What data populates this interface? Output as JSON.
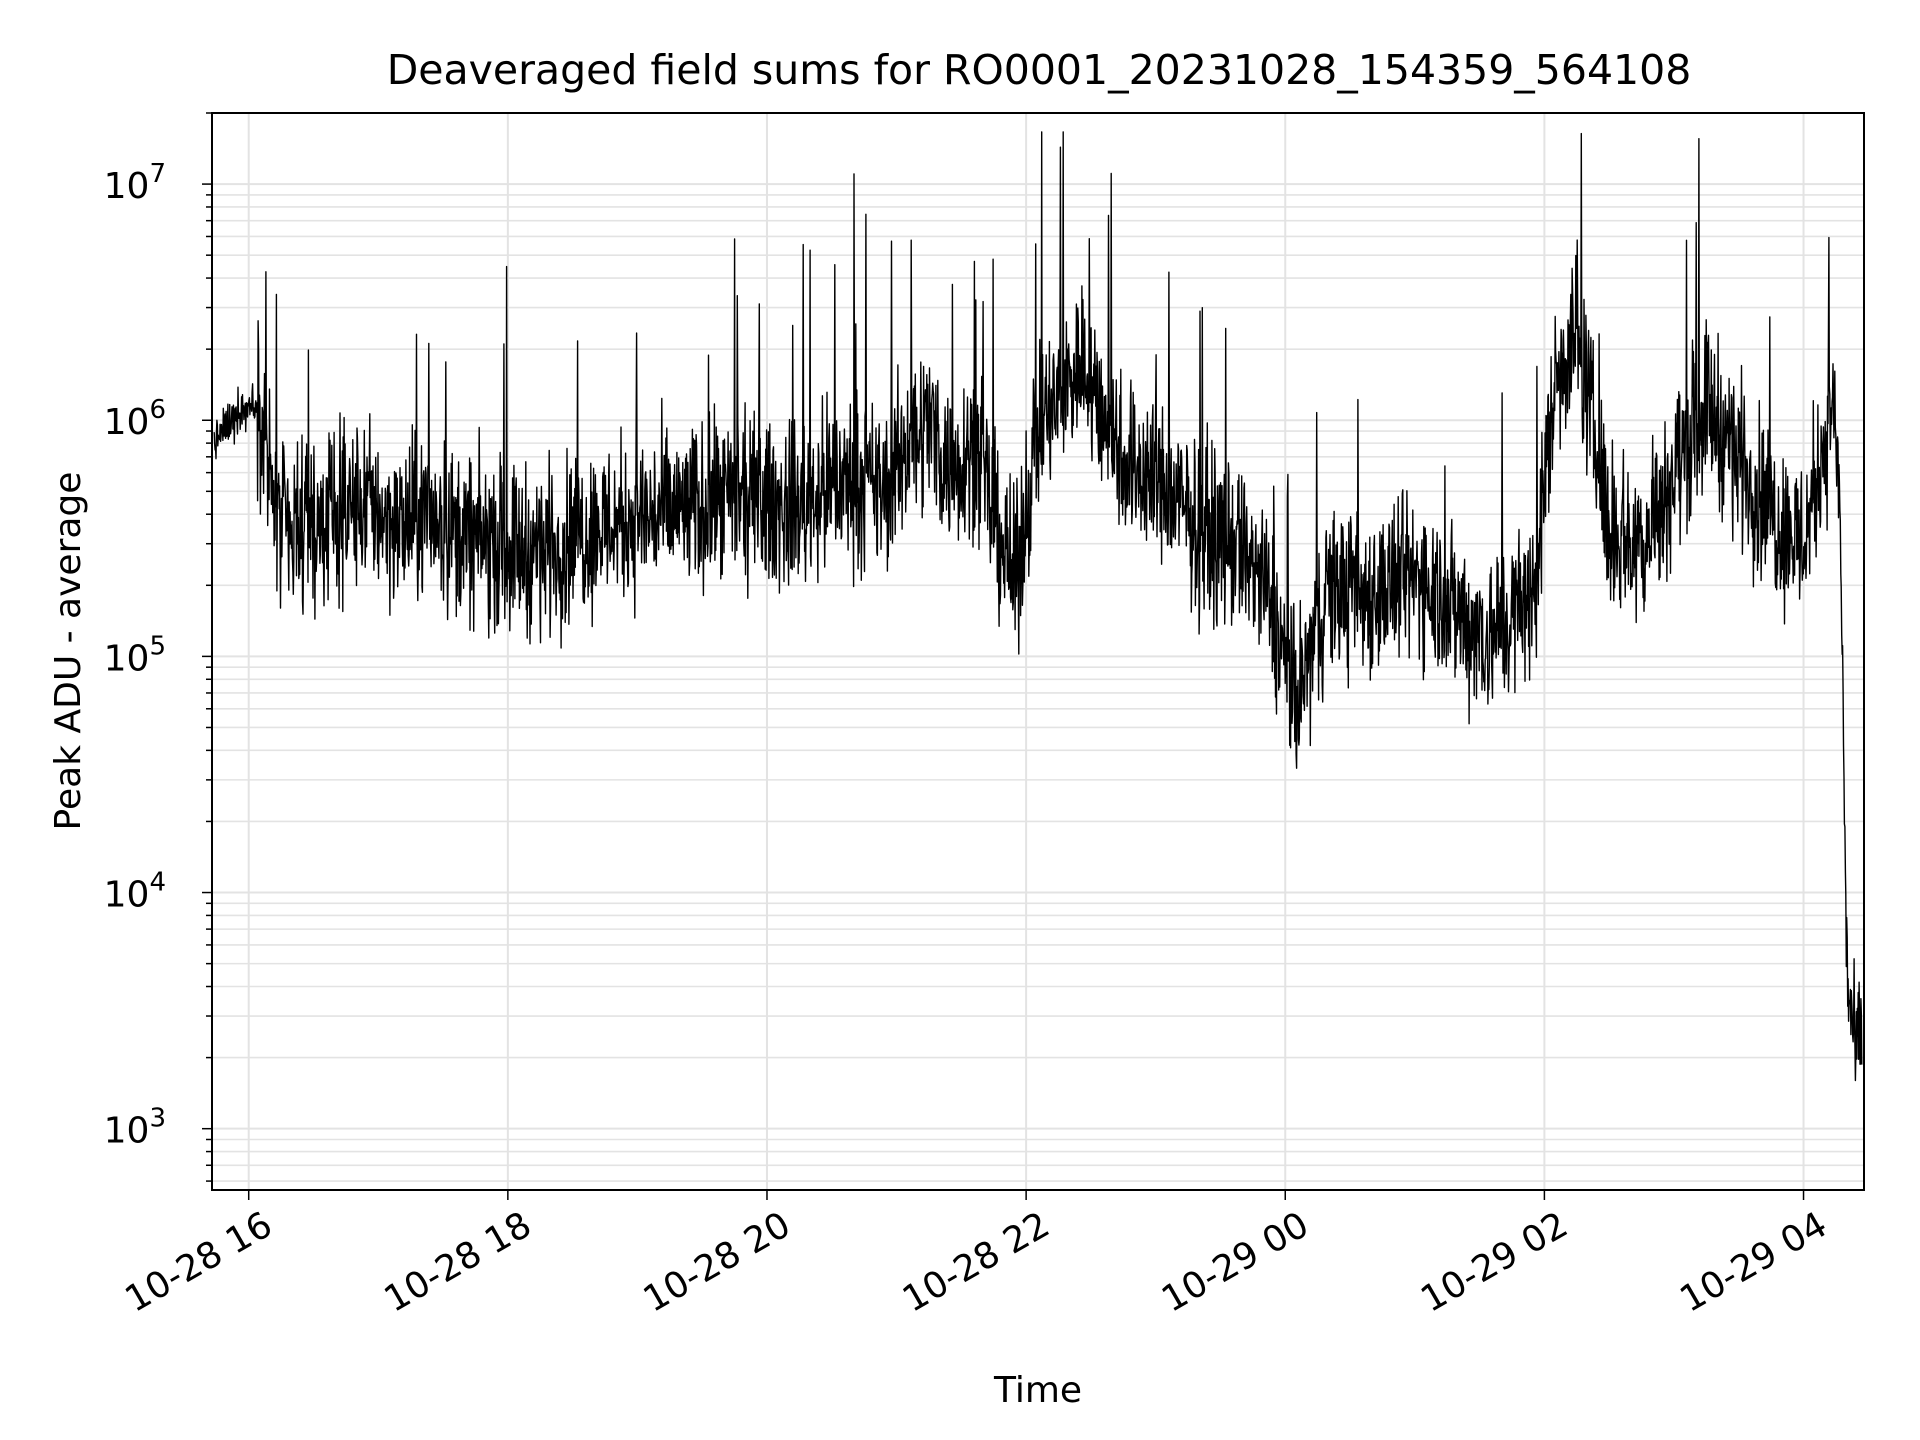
{
  "chart_data": {
    "type": "line",
    "title": "Deaveraged field sums for RO0001_20231028_154359_564108",
    "xlabel": "Time",
    "ylabel": "Peak ADU - average",
    "yscale": "log",
    "grid": "on (major and minor)",
    "line_color": "#000000",
    "x_ticks": [
      "10-28 16",
      "10-28 18",
      "10-28 20",
      "10-28 22",
      "10-29 00",
      "10-29 02",
      "10-29 04"
    ],
    "y_ticks": [
      {
        "base": "10",
        "exp": "3",
        "value": 1000
      },
      {
        "base": "10",
        "exp": "4",
        "value": 10000
      },
      {
        "base": "10",
        "exp": "5",
        "value": 100000
      },
      {
        "base": "10",
        "exp": "6",
        "value": 1000000
      },
      {
        "base": "10",
        "exp": "7",
        "value": 10000000
      }
    ],
    "xlim": [
      "2023-10-28 15:43",
      "2023-10-29 04:28"
    ],
    "ylim": [
      550,
      20000000
    ],
    "series": [
      {
        "x": [
          "2023-10-28 15:44",
          "2023-10-28 15:55",
          "2023-10-28 16:05",
          "2023-10-28 16:12",
          "2023-10-28 16:20",
          "2023-10-28 16:30",
          "2023-10-28 16:40",
          "2023-10-28 16:55",
          "2023-10-28 17:10",
          "2023-10-28 17:25",
          "2023-10-28 17:40",
          "2023-10-28 17:55",
          "2023-10-28 18:10",
          "2023-10-28 18:25",
          "2023-10-28 18:40",
          "2023-10-28 18:55",
          "2023-10-28 19:10",
          "2023-10-28 19:25",
          "2023-10-28 19:40",
          "2023-10-28 19:55",
          "2023-10-28 20:10",
          "2023-10-28 20:25",
          "2023-10-28 20:40",
          "2023-10-28 20:55",
          "2023-10-28 21:05",
          "2023-10-28 21:15",
          "2023-10-28 21:25",
          "2023-10-28 21:35",
          "2023-10-28 21:45",
          "2023-10-28 21:55",
          "2023-10-28 22:05",
          "2023-10-28 22:15",
          "2023-10-28 22:25",
          "2023-10-28 22:35",
          "2023-10-28 22:45",
          "2023-10-28 22:55",
          "2023-10-28 23:05",
          "2023-10-28 23:20",
          "2023-10-28 23:35",
          "2023-10-28 23:45",
          "2023-10-28 23:55",
          "2023-10-29 00:05",
          "2023-10-29 00:20",
          "2023-10-29 00:35",
          "2023-10-29 00:50",
          "2023-10-29 01:05",
          "2023-10-29 01:20",
          "2023-10-29 01:35",
          "2023-10-29 01:45",
          "2023-10-29 01:55",
          "2023-10-29 02:05",
          "2023-10-29 02:15",
          "2023-10-29 02:30",
          "2023-10-29 02:45",
          "2023-10-29 03:00",
          "2023-10-29 03:15",
          "2023-10-29 03:30",
          "2023-10-29 03:45",
          "2023-10-29 04:00",
          "2023-10-29 04:08",
          "2023-10-29 04:14",
          "2023-10-29 04:17",
          "2023-10-29 04:20",
          "2023-10-29 04:24",
          "2023-10-29 04:27"
        ],
        "y": [
          800000,
          1100000,
          1200000,
          400000,
          300000,
          350000,
          400000,
          450000,
          350000,
          400000,
          320000,
          300000,
          280000,
          300000,
          350000,
          380000,
          400000,
          420000,
          450000,
          450000,
          420000,
          500000,
          550000,
          500000,
          800000,
          1000000,
          600000,
          800000,
          400000,
          200000,
          900000,
          1200000,
          1800000,
          1100000,
          700000,
          600000,
          500000,
          350000,
          300000,
          250000,
          150000,
          60000,
          200000,
          180000,
          200000,
          220000,
          150000,
          120000,
          150000,
          180000,
          1500000,
          2500000,
          350000,
          300000,
          600000,
          1200000,
          700000,
          400000,
          300000,
          700000,
          1200000,
          400000,
          5000,
          2000,
          2500
        ]
      }
    ]
  }
}
